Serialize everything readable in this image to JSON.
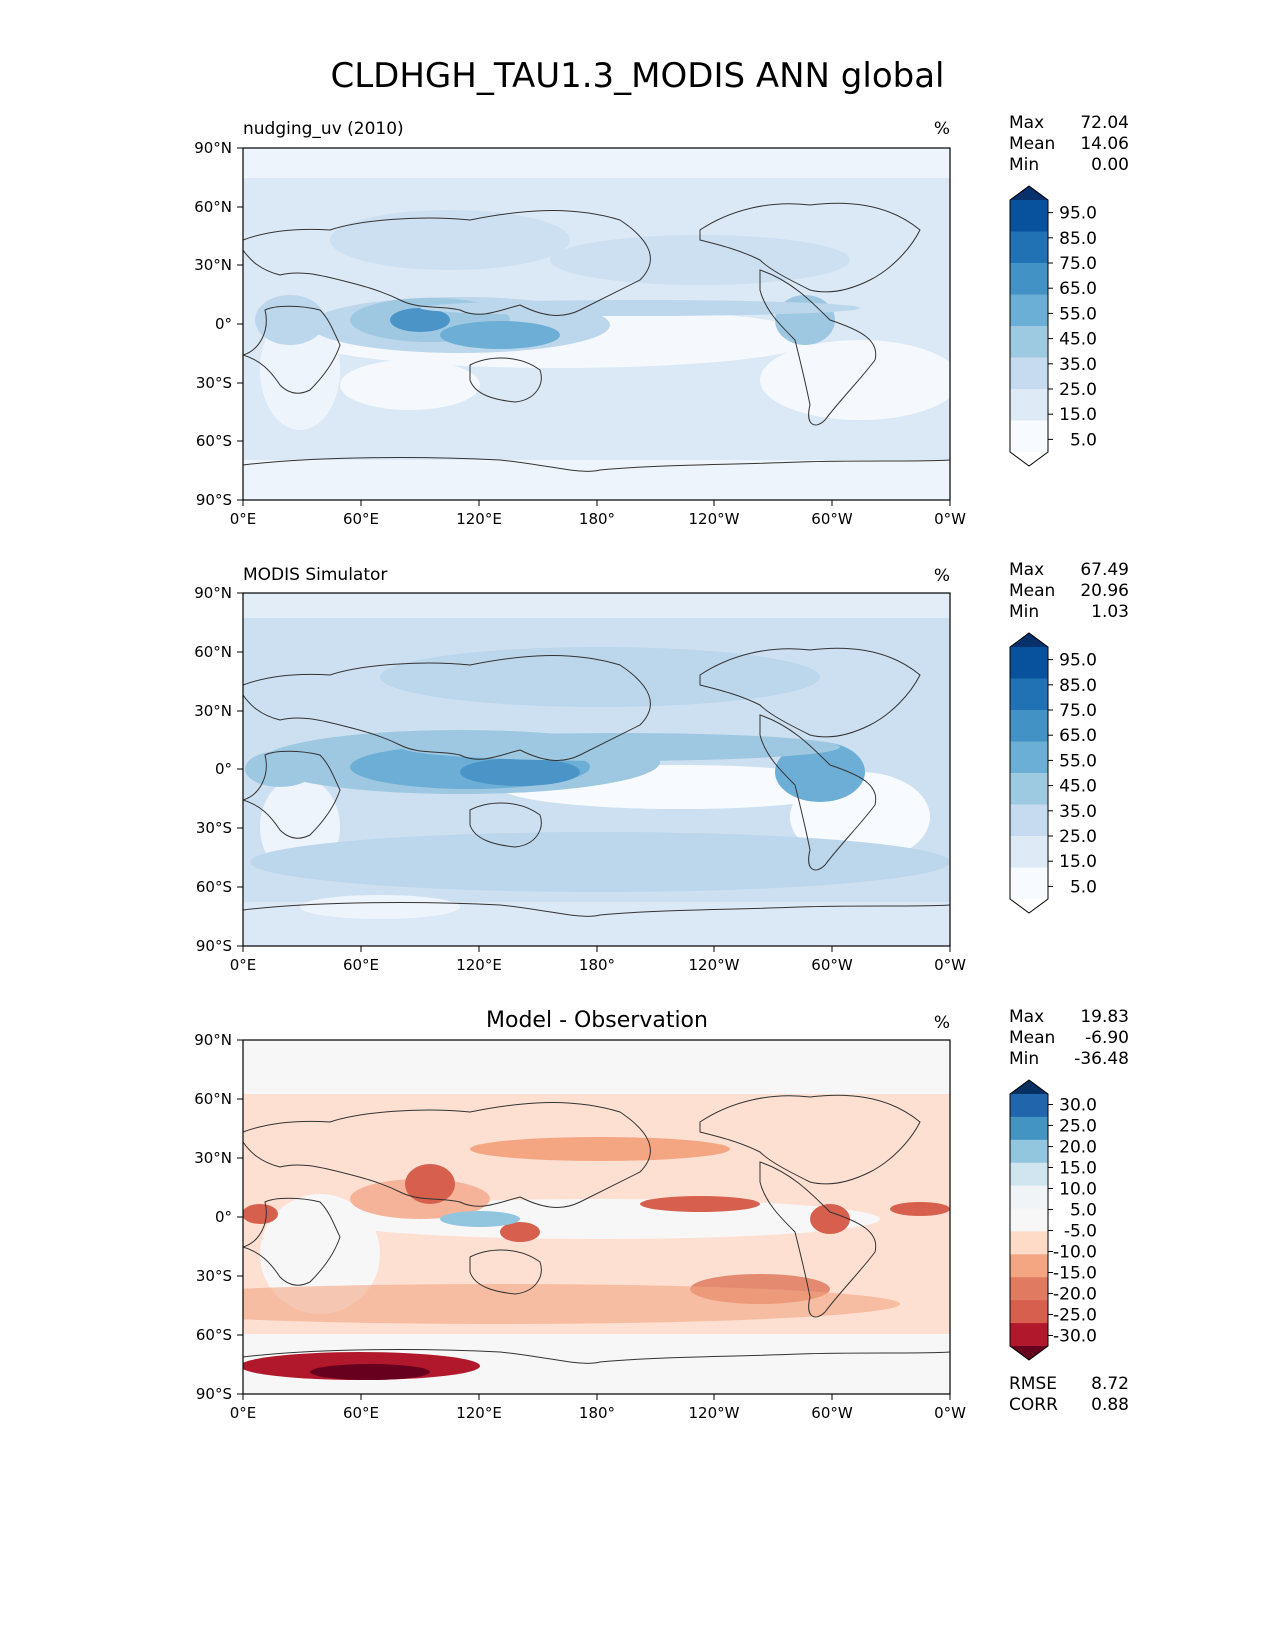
{
  "title": "CLDHGH_TAU1.3_MODIS ANN global",
  "lat_ticks": [
    "90°N",
    "60°N",
    "30°N",
    "0°",
    "30°S",
    "60°S",
    "90°S"
  ],
  "lon_ticks": [
    "0°E",
    "60°E",
    "120°E",
    "180°",
    "120°W",
    "60°W",
    "0°W"
  ],
  "panels": [
    {
      "id": "model",
      "title_left": "nudging_uv (2010)",
      "title_center": "",
      "units": "%",
      "stats": [
        {
          "label": "Max",
          "value": "72.04"
        },
        {
          "label": "Mean",
          "value": "14.06"
        },
        {
          "label": "Min",
          "value": "0.00"
        }
      ],
      "colorbar": {
        "colors": [
          "#08306b",
          "#08519c",
          "#2171b5",
          "#4292c6",
          "#6baed6",
          "#9ecae1",
          "#c6dbef",
          "#deebf7",
          "#f7fbff",
          "#ffffff"
        ],
        "labels": [
          "95.0",
          "85.0",
          "75.0",
          "65.0",
          "55.0",
          "45.0",
          "35.0",
          "25.0",
          "15.0",
          "5.0"
        ]
      }
    },
    {
      "id": "obs",
      "title_left": "MODIS Simulator",
      "title_center": "",
      "units": "%",
      "stats": [
        {
          "label": "Max",
          "value": "67.49"
        },
        {
          "label": "Mean",
          "value": "20.96"
        },
        {
          "label": "Min",
          "value": "1.03"
        }
      ],
      "colorbar": {
        "colors": [
          "#08306b",
          "#08519c",
          "#2171b5",
          "#4292c6",
          "#6baed6",
          "#9ecae1",
          "#c6dbef",
          "#deebf7",
          "#f7fbff",
          "#ffffff"
        ],
        "labels": [
          "95.0",
          "85.0",
          "75.0",
          "65.0",
          "55.0",
          "45.0",
          "35.0",
          "25.0",
          "15.0",
          "5.0"
        ]
      }
    },
    {
      "id": "diff",
      "title_left": "",
      "title_center": "Model - Observation",
      "units": "%",
      "stats": [
        {
          "label": "Max",
          "value": "19.83"
        },
        {
          "label": "Mean",
          "value": "-6.90"
        },
        {
          "label": "Min",
          "value": "-36.48"
        }
      ],
      "colorbar": {
        "colors": [
          "#053061",
          "#2166ac",
          "#4393c3",
          "#92c5de",
          "#d1e5f0",
          "#f0f4f7",
          "#f7f7f7",
          "#fddbc7",
          "#f4a582",
          "#e07b62",
          "#d6604d",
          "#b2182b",
          "#67001f"
        ],
        "labels": [
          "30.0",
          "25.0",
          "20.0",
          "15.0",
          "10.0",
          "5.0",
          "-5.0",
          "-10.0",
          "-15.0",
          "-20.0",
          "-25.0",
          "-30.0"
        ]
      },
      "metrics": [
        {
          "label": "RMSE",
          "value": "8.72"
        },
        {
          "label": "CORR",
          "value": "0.88"
        }
      ]
    }
  ]
}
